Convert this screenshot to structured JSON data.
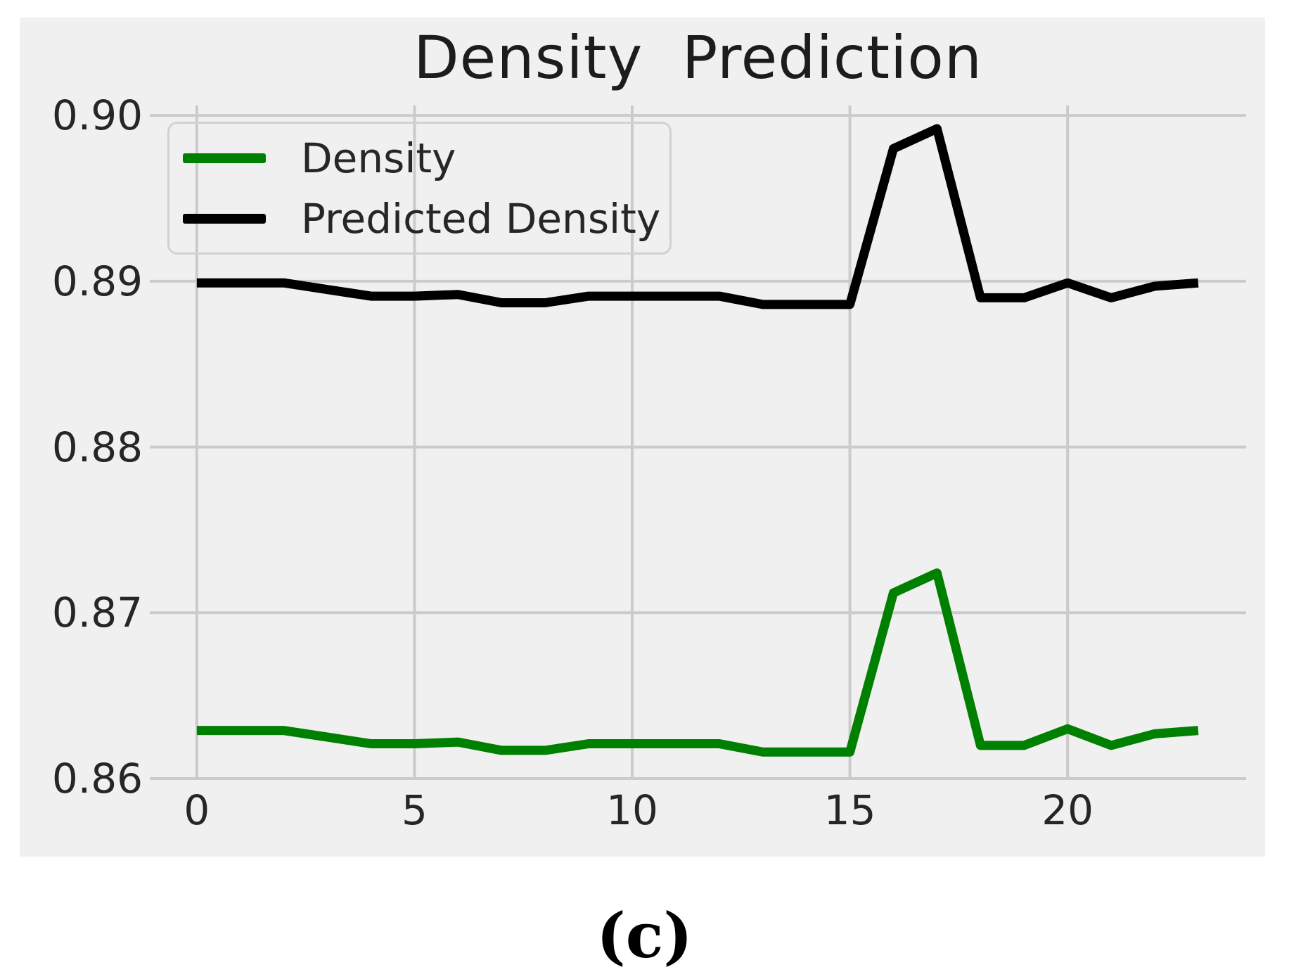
{
  "page": {
    "background": "#ffffff"
  },
  "figure": {
    "background": "#f0f0f0",
    "grid_color": "#cbcbcb",
    "tick_label_color": "#262626",
    "title_color": "#1c1c1c"
  },
  "chart_data": {
    "type": "line",
    "title": "Density  Prediction",
    "xlabel": "",
    "ylabel": "",
    "grid": true,
    "legend_position": "upper-left",
    "xlim": [
      -1.08,
      24.1
    ],
    "ylim": [
      0.86,
      0.9006
    ],
    "x_ticks": [
      0,
      5,
      10,
      15,
      20
    ],
    "x_tick_labels": [
      "0",
      "5",
      "10",
      "15",
      "20"
    ],
    "y_ticks": [
      0.9,
      0.89,
      0.88,
      0.87,
      0.86
    ],
    "y_tick_labels": [
      "0.90",
      "0.89",
      "0.88",
      "0.87",
      "0.86"
    ],
    "x": [
      0,
      1,
      2,
      3,
      4,
      5,
      6,
      7,
      8,
      9,
      10,
      11,
      12,
      13,
      14,
      15,
      16,
      17,
      18,
      19,
      20,
      21,
      22,
      23
    ],
    "series": [
      {
        "name": "Density",
        "color": "#008000",
        "values": [
          0.8629,
          0.8629,
          0.8629,
          0.8625,
          0.8621,
          0.8621,
          0.8622,
          0.8617,
          0.8617,
          0.8621,
          0.8621,
          0.8621,
          0.8621,
          0.8616,
          0.8616,
          0.8616,
          0.8712,
          0.8724,
          0.862,
          0.862,
          0.863,
          0.862,
          0.8627,
          0.8629
        ]
      },
      {
        "name": "Predicted Density",
        "color": "#000000",
        "values": [
          0.8899,
          0.8899,
          0.8899,
          0.8895,
          0.8891,
          0.8891,
          0.8892,
          0.8887,
          0.8887,
          0.8891,
          0.8891,
          0.8891,
          0.8891,
          0.8886,
          0.8886,
          0.8886,
          0.898,
          0.8992,
          0.889,
          0.889,
          0.8899,
          0.889,
          0.8897,
          0.8899
        ]
      }
    ]
  },
  "caption": {
    "text": "(c)"
  }
}
